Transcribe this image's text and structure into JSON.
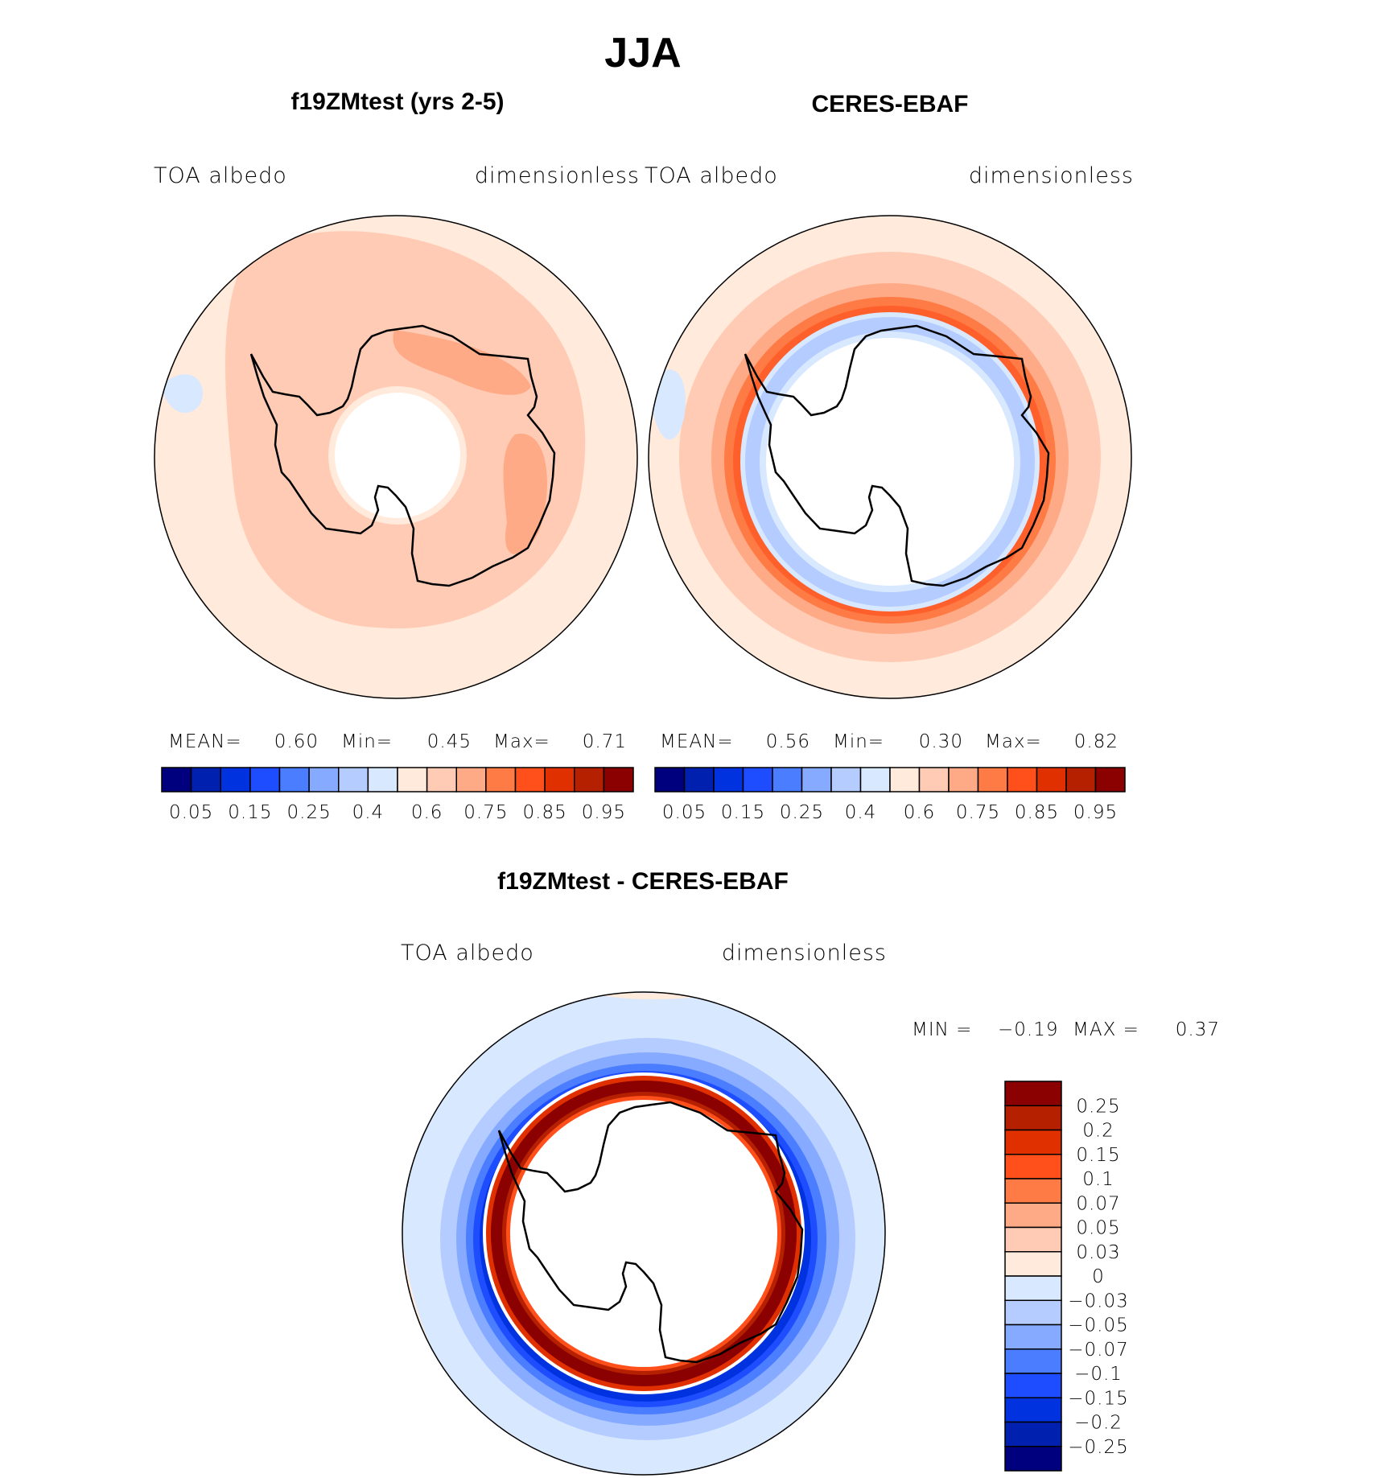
{
  "figure": {
    "title": "JJA"
  },
  "colors": [
    "#00007f",
    "#0020b0",
    "#0032e0",
    "#1e4cff",
    "#4a7dff",
    "#86aaff",
    "#b4ccff",
    "#d8e8ff",
    "#ffeadb",
    "#ffcbb4",
    "#ffaa86",
    "#ff7b45",
    "#ff4f1a",
    "#e03000",
    "#b42000",
    "#8b0000"
  ],
  "chart_data": [
    {
      "type": "heatmap",
      "title": "f19ZMtest (yrs 2-5)",
      "variable": "TOA albedo",
      "units": "dimensionless",
      "projection": "south-polar-stereographic",
      "stats": {
        "mean_label": "MEAN=",
        "mean": "0.60",
        "min_label": "Min=",
        "min": "0.45",
        "max_label": "Max=",
        "max": "0.71"
      },
      "colorbar_labels": [
        "0.05",
        "0.15",
        "0.25",
        "0.4",
        "0.6",
        "0.75",
        "0.85",
        "0.95"
      ]
    },
    {
      "type": "heatmap",
      "title": "CERES-EBAF",
      "variable": "TOA albedo",
      "units": "dimensionless",
      "projection": "south-polar-stereographic",
      "stats": {
        "mean_label": "MEAN=",
        "mean": "0.56",
        "min_label": "Min=",
        "min": "0.30",
        "max_label": "Max=",
        "max": "0.82"
      },
      "colorbar_labels": [
        "0.05",
        "0.15",
        "0.25",
        "0.4",
        "0.6",
        "0.75",
        "0.85",
        "0.95"
      ]
    },
    {
      "type": "heatmap",
      "title": "f19ZMtest - CERES-EBAF",
      "variable": "TOA albedo",
      "units": "dimensionless",
      "projection": "south-polar-stereographic",
      "stats": {
        "min_label": "MIN =",
        "min": "−0.19",
        "max_label": "MAX =",
        "max": "0.37"
      },
      "colorbar_labels": [
        "0.25",
        "0.2",
        "0.15",
        "0.1",
        "0.07",
        "0.05",
        "0.03",
        "0",
        "−0.03",
        "−0.05",
        "−0.07",
        "−0.1",
        "−0.15",
        "−0.2",
        "−0.25"
      ]
    }
  ]
}
